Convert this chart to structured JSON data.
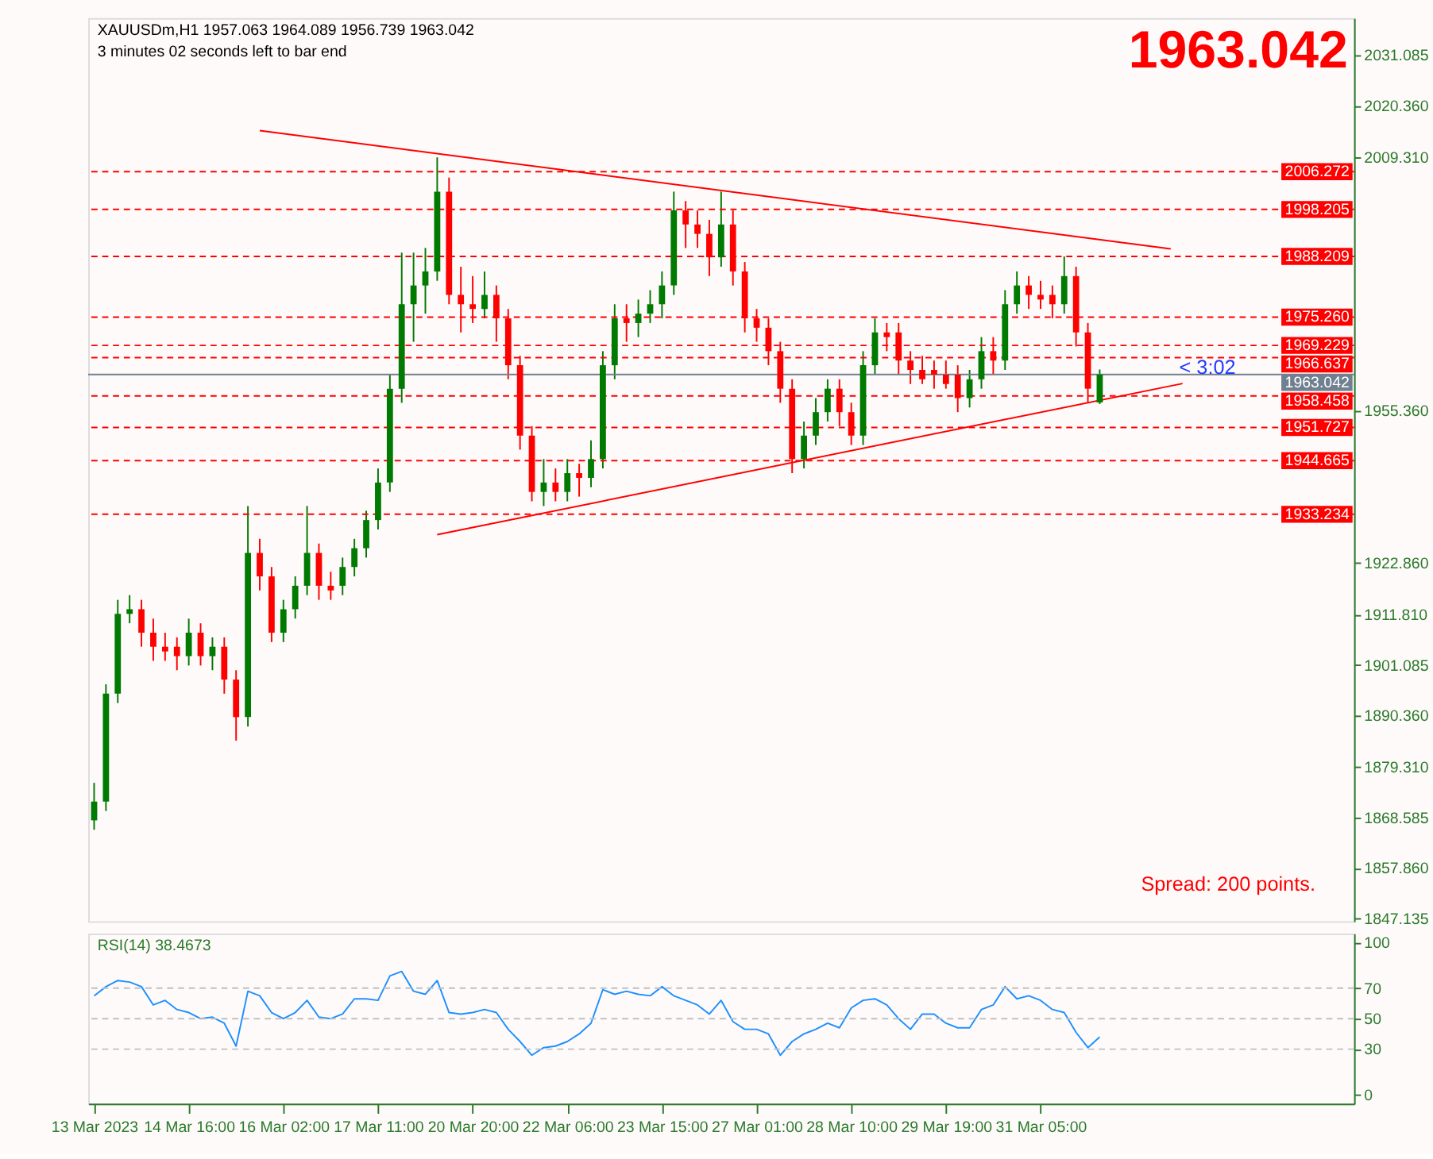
{
  "chart_data": [
    {
      "type": "candlestick",
      "title": "XAUUSDm,H1  1957.063 1964.089 1956.739 1963.042",
      "subtitle": "3 minutes 02 seconds left to bar end",
      "categories": [
        null,
        null,
        null,
        null,
        null,
        null,
        null,
        null,
        null,
        null,
        null,
        null,
        null,
        null,
        null,
        null,
        null,
        null,
        null,
        null,
        null,
        null,
        null,
        null,
        null,
        null,
        null,
        null,
        null,
        null,
        null,
        null,
        null,
        null,
        null,
        null,
        null,
        null,
        null,
        null,
        null,
        null,
        null,
        null,
        null,
        null,
        null,
        null,
        null,
        null,
        null,
        null,
        null,
        null,
        null,
        null,
        null,
        null,
        null,
        null,
        null,
        null,
        null,
        null,
        null,
        null,
        null,
        null,
        null,
        null,
        null,
        null,
        null,
        null,
        null,
        null,
        null,
        null,
        null,
        null,
        null,
        null,
        null,
        null,
        null,
        null,
        null,
        null,
        null,
        null,
        null,
        null,
        null,
        null,
        null,
        null,
        null,
        null,
        null,
        null,
        null,
        null,
        null,
        null,
        null,
        null,
        null
      ],
      "ohlc": [
        [
          1868,
          1876,
          1866,
          1872
        ],
        [
          1872,
          1897,
          1870,
          1895
        ],
        [
          1895,
          1915,
          1893,
          1912
        ],
        [
          1912,
          1916,
          1910,
          1913
        ],
        [
          1913,
          1915,
          1905,
          1908
        ],
        [
          1908,
          1911,
          1902,
          1905
        ],
        [
          1905,
          1908,
          1902,
          1904
        ],
        [
          1905,
          1907,
          1900,
          1903
        ],
        [
          1903,
          1911,
          1901,
          1908
        ],
        [
          1908,
          1910,
          1901,
          1903
        ],
        [
          1903,
          1907,
          1900,
          1905
        ],
        [
          1905,
          1907,
          1895,
          1898
        ],
        [
          1898,
          1900,
          1885,
          1890
        ],
        [
          1890,
          1935,
          1888,
          1925
        ],
        [
          1925,
          1928,
          1917,
          1920
        ],
        [
          1920,
          1922,
          1906,
          1908
        ],
        [
          1908,
          1915,
          1906,
          1913
        ],
        [
          1913,
          1920,
          1911,
          1918
        ],
        [
          1918,
          1935,
          1916,
          1925
        ],
        [
          1925,
          1927,
          1915,
          1918
        ],
        [
          1918,
          1921,
          1915,
          1917
        ],
        [
          1918,
          1924,
          1916,
          1922
        ],
        [
          1922,
          1928,
          1920,
          1926
        ],
        [
          1926,
          1934,
          1924,
          1932
        ],
        [
          1932,
          1943,
          1930,
          1940
        ],
        [
          1940,
          1963,
          1938,
          1960
        ],
        [
          1960,
          1989,
          1957,
          1978
        ],
        [
          1978,
          1989,
          1970,
          1982
        ],
        [
          1982,
          1990,
          1976,
          1985
        ],
        [
          1985,
          2009.3,
          1983,
          2002
        ],
        [
          2002,
          2005,
          1978,
          1980
        ],
        [
          1980,
          1986,
          1972,
          1978
        ],
        [
          1978,
          1984,
          1974,
          1977
        ],
        [
          1977,
          1985,
          1975,
          1980
        ],
        [
          1980,
          1982,
          1970,
          1975
        ],
        [
          1975,
          1977,
          1962,
          1965
        ],
        [
          1965,
          1967,
          1947,
          1950
        ],
        [
          1950,
          1952,
          1936,
          1938
        ],
        [
          1938,
          1945,
          1935,
          1940
        ],
        [
          1940,
          1943,
          1936,
          1938
        ],
        [
          1938,
          1945,
          1936,
          1942
        ],
        [
          1942,
          1944,
          1937,
          1941
        ],
        [
          1941,
          1949,
          1939,
          1945
        ],
        [
          1945,
          1968,
          1943,
          1965
        ],
        [
          1965,
          1978,
          1962,
          1975
        ],
        [
          1975,
          1978,
          1970,
          1974
        ],
        [
          1974,
          1979,
          1971,
          1976
        ],
        [
          1976,
          1981,
          1974,
          1978
        ],
        [
          1978,
          1985,
          1975,
          1982
        ],
        [
          1982,
          2002,
          1980,
          1998
        ],
        [
          1998,
          2000,
          1990,
          1995
        ],
        [
          1995,
          1998,
          1990,
          1993
        ],
        [
          1993,
          1996,
          1984,
          1988
        ],
        [
          1988,
          2002,
          1986,
          1995
        ],
        [
          1995,
          1998,
          1982,
          1985
        ],
        [
          1985,
          1987,
          1972,
          1975
        ],
        [
          1975,
          1977,
          1970,
          1973
        ],
        [
          1973,
          1975,
          1965,
          1968
        ],
        [
          1968,
          1970,
          1957,
          1960
        ],
        [
          1960,
          1962,
          1942,
          1945
        ],
        [
          1945,
          1953,
          1943,
          1950
        ],
        [
          1950,
          1958,
          1948,
          1955
        ],
        [
          1955,
          1962,
          1953,
          1960
        ],
        [
          1960,
          1962,
          1952,
          1955
        ],
        [
          1955,
          1957,
          1948,
          1950
        ],
        [
          1950,
          1968,
          1948,
          1965
        ],
        [
          1965,
          1975,
          1963,
          1972
        ],
        [
          1972,
          1974,
          1968,
          1971
        ],
        [
          1972,
          1974,
          1963,
          1966
        ],
        [
          1966,
          1968,
          1961,
          1964
        ],
        [
          1964,
          1967,
          1961,
          1962
        ],
        [
          1964,
          1966,
          1960,
          1963
        ],
        [
          1963,
          1966,
          1960,
          1961
        ],
        [
          1963,
          1965,
          1955,
          1958
        ],
        [
          1958,
          1964,
          1956,
          1962
        ],
        [
          1962,
          1971,
          1960,
          1968
        ],
        [
          1968,
          1971,
          1963,
          1966
        ],
        [
          1966,
          1981,
          1964,
          1978
        ],
        [
          1978,
          1985,
          1976,
          1982
        ],
        [
          1982,
          1984,
          1977,
          1980
        ],
        [
          1980,
          1983,
          1977,
          1979
        ],
        [
          1980,
          1982,
          1975,
          1978
        ],
        [
          1978,
          1988.2,
          1976,
          1984
        ],
        [
          1984,
          1986,
          1969,
          1972
        ],
        [
          1972,
          1974,
          1957,
          1960
        ],
        [
          1957.063,
          1964.089,
          1956.739,
          1963.042
        ],
        null,
        null,
        null,
        null,
        null,
        null,
        null,
        null,
        null,
        null,
        null,
        null,
        null,
        null,
        null,
        null,
        null,
        null,
        null,
        null,
        null
      ],
      "colors": [
        "#007a00",
        "#007a00",
        "#007a00",
        "#007a00",
        "#ff0000",
        "#ff0000",
        "#ff0000",
        "#ff0000",
        "#007a00",
        "#ff0000",
        "#007a00",
        "#ff0000",
        "#ff0000",
        "#007a00",
        "#ff0000",
        "#ff0000",
        "#007a00",
        "#007a00",
        "#007a00",
        "#ff0000",
        "#ff0000",
        "#007a00",
        "#007a00",
        "#007a00",
        "#007a00",
        "#007a00",
        "#007a00",
        "#007a00",
        "#007a00",
        "#007a00",
        "#ff0000",
        "#ff0000",
        "#ff0000",
        "#007a00",
        "#ff0000",
        "#ff0000",
        "#ff0000",
        "#ff0000",
        "#007a00",
        "#ff0000",
        "#007a00",
        "#ff0000",
        "#007a00",
        "#007a00",
        "#007a00",
        "#ff0000",
        "#007a00",
        "#007a00",
        "#007a00",
        "#007a00",
        "#ff0000",
        "#ff0000",
        "#ff0000",
        "#007a00",
        "#ff0000",
        "#ff0000",
        "#ff0000",
        "#ff0000",
        "#ff0000",
        "#ff0000",
        "#007a00",
        "#007a00",
        "#007a00",
        "#ff0000",
        "#ff0000",
        "#007a00",
        "#007a00",
        "#ff0000",
        "#ff0000",
        "#ff0000",
        "#ff0000",
        "#ff0000",
        "#ff0000",
        "#ff0000",
        "#007a00",
        "#007a00",
        "#ff0000",
        "#007a00",
        "#007a00",
        "#ff0000",
        "#ff0000",
        "#ff0000",
        "#007a00",
        "#ff0000",
        "#ff0000",
        "#007a00",
        null,
        null,
        null,
        null,
        null,
        null,
        null,
        null,
        null,
        null,
        null,
        null,
        null,
        null,
        null,
        null,
        null,
        null,
        null,
        null,
        null
      ],
      "series": [
        {
          "type": "line",
          "color": "#ff0000",
          "values": [
            null,
            null,
            null,
            null,
            null,
            null,
            null,
            null,
            null,
            null,
            null,
            null,
            null,
            null,
            2015.0,
            null,
            null,
            null,
            null,
            null,
            null,
            null,
            null,
            null,
            null,
            null,
            null,
            null,
            null,
            null,
            null,
            null,
            null,
            null,
            null,
            null,
            null,
            null,
            null,
            null,
            null,
            null,
            null,
            null,
            null,
            null,
            null,
            null,
            null,
            null,
            null,
            null,
            null,
            null,
            null,
            null,
            null,
            null,
            null,
            null,
            null,
            null,
            null,
            null,
            null,
            null,
            null,
            null,
            null,
            null,
            null,
            null,
            null,
            null,
            null,
            null,
            null,
            null,
            null,
            null,
            null,
            null,
            null,
            null,
            null,
            null,
            null,
            null,
            null,
            null,
            null,
            1989.8,
            null,
            null,
            null,
            null,
            null,
            null,
            null,
            null,
            null,
            null,
            null,
            null,
            null,
            null,
            null
          ]
        },
        {
          "type": "line",
          "color": "#ff0000",
          "values": [
            null,
            null,
            null,
            null,
            null,
            null,
            null,
            null,
            null,
            null,
            null,
            null,
            null,
            null,
            null,
            null,
            null,
            null,
            null,
            null,
            null,
            null,
            null,
            null,
            null,
            null,
            null,
            null,
            null,
            1928.9,
            null,
            null,
            null,
            null,
            null,
            null,
            null,
            null,
            null,
            null,
            null,
            null,
            null,
            null,
            null,
            null,
            null,
            null,
            null,
            null,
            null,
            null,
            null,
            null,
            null,
            null,
            null,
            null,
            null,
            null,
            null,
            null,
            null,
            null,
            null,
            null,
            null,
            null,
            null,
            null,
            null,
            null,
            null,
            null,
            null,
            null,
            null,
            null,
            null,
            null,
            null,
            null,
            null,
            null,
            null,
            null,
            null,
            null,
            null,
            null,
            null,
            null,
            1961.1,
            null,
            null,
            null,
            null,
            null,
            null,
            null,
            null,
            null,
            null,
            null,
            null,
            null,
            null
          ]
        }
      ],
      "ref_lines": [
        {
          "axis": "y",
          "value": 2006.272,
          "label": "2006.272",
          "color": "#ff0000",
          "line_style": "dashed"
        },
        {
          "axis": "y",
          "value": 1998.205,
          "label": "1998.205",
          "color": "#ff0000",
          "line_style": "dashed"
        },
        {
          "axis": "y",
          "value": 1988.209,
          "label": "1988.209",
          "color": "#ff0000",
          "line_style": "dashed"
        },
        {
          "axis": "y",
          "value": 1975.26,
          "label": "1975.260",
          "color": "#ff0000",
          "line_style": "dashed"
        },
        {
          "axis": "y",
          "value": 1969.229,
          "label": "1969.229",
          "color": "#ff0000",
          "line_style": "dashed"
        },
        {
          "axis": "y",
          "value": 1966.637,
          "label": "1966.637",
          "color": "#ff0000",
          "line_style": "dashed"
        },
        {
          "axis": "y",
          "value": 1963.042,
          "label": "1963.042",
          "color": "#708090",
          "line_style": "solid"
        },
        {
          "axis": "y",
          "value": 1958.458,
          "label": "1958.458",
          "color": "#ff0000",
          "line_style": "dashed"
        },
        {
          "axis": "y",
          "value": 1951.727,
          "label": "1951.727",
          "color": "#ff0000",
          "line_style": "dashed"
        },
        {
          "axis": "y",
          "value": 1944.665,
          "label": "1944.665",
          "color": "#ff0000",
          "line_style": "dashed"
        },
        {
          "axis": "y",
          "value": 1933.234,
          "label": "1933.234",
          "color": "#ff0000",
          "line_style": "dashed"
        }
      ],
      "annotations": [
        "1963.042",
        "< 3:02",
        "Spread: 200 points."
      ],
      "ylim": [
        1846.5,
        2039
      ],
      "yticks": [
        2031.085,
        {
          "value": 2020.36,
          "label": "2020.360"
        },
        {
          "value": 2009.31,
          "label": "2009.310"
        },
        {
          "value": 1955.36,
          "label": "1955.360"
        },
        {
          "value": 1922.86,
          "label": "1922.860"
        },
        {
          "value": 1911.81,
          "label": "1911.810"
        },
        1901.085,
        {
          "value": 1890.36,
          "label": "1890.360"
        },
        {
          "value": 1879.31,
          "label": "1879.310"
        },
        1868.585,
        {
          "value": 1857.86,
          "label": "1857.860"
        },
        1847.135
      ],
      "tick_labels": "y",
      "grid": false
    },
    {
      "type": "line",
      "title": "RSI(14) 38.4673",
      "categories": [
        "13 Mar 2023",
        null,
        null,
        null,
        null,
        null,
        null,
        null,
        "14 Mar 16:00",
        null,
        null,
        null,
        null,
        null,
        null,
        null,
        "16 Mar 02:00",
        null,
        null,
        null,
        null,
        null,
        null,
        null,
        "17 Mar 11:00",
        null,
        null,
        null,
        null,
        null,
        null,
        null,
        "20 Mar 20:00",
        null,
        null,
        null,
        null,
        null,
        null,
        null,
        "22 Mar 06:00",
        null,
        null,
        null,
        null,
        null,
        null,
        null,
        "23 Mar 15:00",
        null,
        null,
        null,
        null,
        null,
        null,
        null,
        "27 Mar 01:00",
        null,
        null,
        null,
        null,
        null,
        null,
        null,
        "28 Mar 10:00",
        null,
        null,
        null,
        null,
        null,
        null,
        null,
        "29 Mar 19:00",
        null,
        null,
        null,
        null,
        null,
        null,
        null,
        "31 Mar 05:00",
        null,
        null,
        null,
        null,
        null,
        null,
        null,
        null,
        null,
        null,
        null,
        null,
        null,
        null,
        null,
        null,
        null,
        null,
        null,
        null,
        null,
        null,
        null,
        null,
        null,
        null
      ],
      "series": [
        {
          "color": "#1e90ff",
          "values": [
            65,
            71,
            75,
            74,
            71,
            59,
            62,
            56,
            54,
            50,
            51,
            47,
            32,
            68,
            65,
            54,
            50,
            54,
            62,
            51,
            50,
            53,
            63,
            63,
            62,
            78,
            81,
            68,
            66,
            75,
            54,
            53,
            54,
            56,
            54,
            43,
            35,
            26,
            31,
            32,
            35,
            40,
            47,
            69,
            66,
            68,
            66,
            65,
            71,
            65,
            62,
            59,
            53,
            62,
            48,
            43,
            43,
            40,
            26,
            35,
            40,
            43,
            47,
            44,
            57,
            62,
            63,
            59,
            50,
            43,
            53,
            53,
            47,
            44,
            44,
            56,
            59,
            71,
            63,
            65,
            62,
            56,
            54,
            41,
            31,
            38,
            null,
            null,
            null,
            null,
            null,
            null,
            null,
            null,
            null,
            null,
            null,
            null,
            null,
            null,
            null,
            null,
            null,
            null,
            null,
            null,
            null
          ]
        }
      ],
      "ref_lines": [
        {
          "axis": "y",
          "value": 70,
          "color": "#c0c0c0",
          "line_style": "dashed"
        },
        {
          "axis": "y",
          "value": 50,
          "color": "#c0c0c0",
          "line_style": "dashed"
        },
        {
          "axis": "y",
          "value": 30,
          "color": "#c0c0c0",
          "line_style": "dashed"
        }
      ],
      "ylim": [
        -5.8,
        105.8
      ],
      "yticks": [
        0,
        30,
        50,
        70,
        100
      ],
      "grid": false
    }
  ]
}
